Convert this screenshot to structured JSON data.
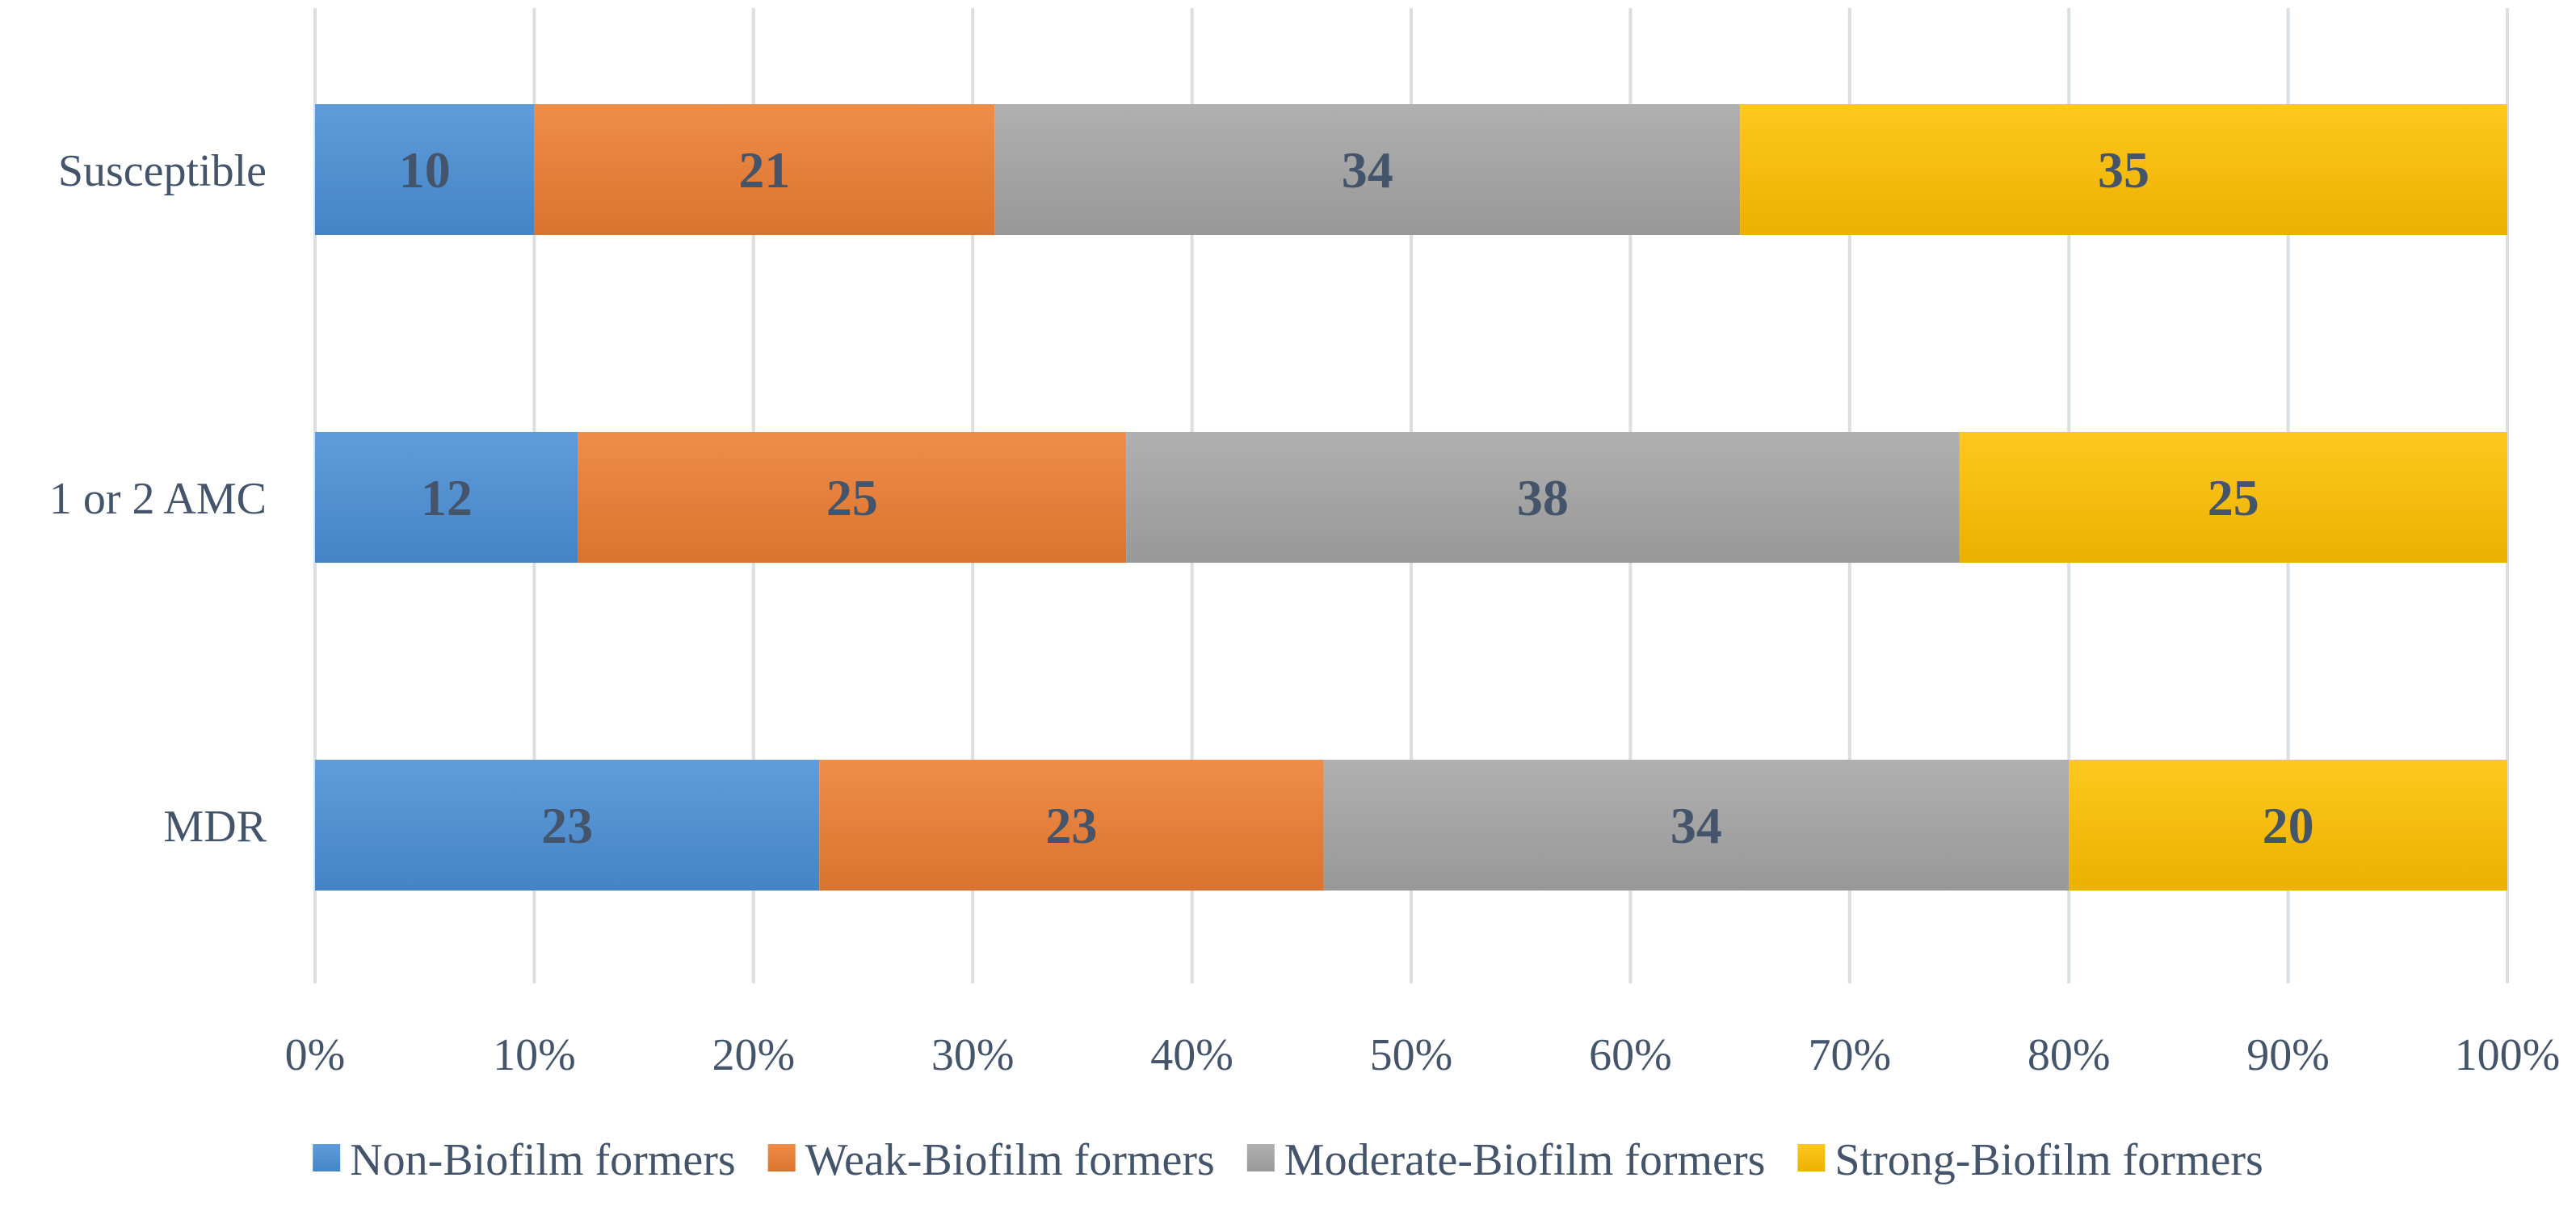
{
  "chart_data": {
    "type": "bar",
    "orientation": "horizontal",
    "stacked": true,
    "percent_stacked": true,
    "categories": [
      "Susceptible",
      "1 or 2 AMC",
      "MDR"
    ],
    "series": [
      {
        "name": "Non-Biofilm formers",
        "values": [
          10,
          12,
          23
        ],
        "color": "#4a8fd6"
      },
      {
        "name": "Weak-Biofilm formers",
        "values": [
          21,
          25,
          23
        ],
        "color": "#ed7d31"
      },
      {
        "name": "Moderate-Biofilm formers",
        "values": [
          34,
          38,
          34
        ],
        "color": "#a5a5a5"
      },
      {
        "name": "Strong-Biofilm formers",
        "values": [
          35,
          25,
          20
        ],
        "color": "#ffc000"
      }
    ],
    "x_ticks": [
      "0%",
      "10%",
      "20%",
      "30%",
      "40%",
      "50%",
      "60%",
      "70%",
      "80%",
      "90%",
      "100%"
    ],
    "xlim": [
      0,
      100
    ],
    "grid": true,
    "legend_position": "bottom",
    "title": "",
    "xlabel": "",
    "ylabel": ""
  },
  "colors": {
    "text": "#44546a",
    "grid": "#d9dfe3"
  }
}
